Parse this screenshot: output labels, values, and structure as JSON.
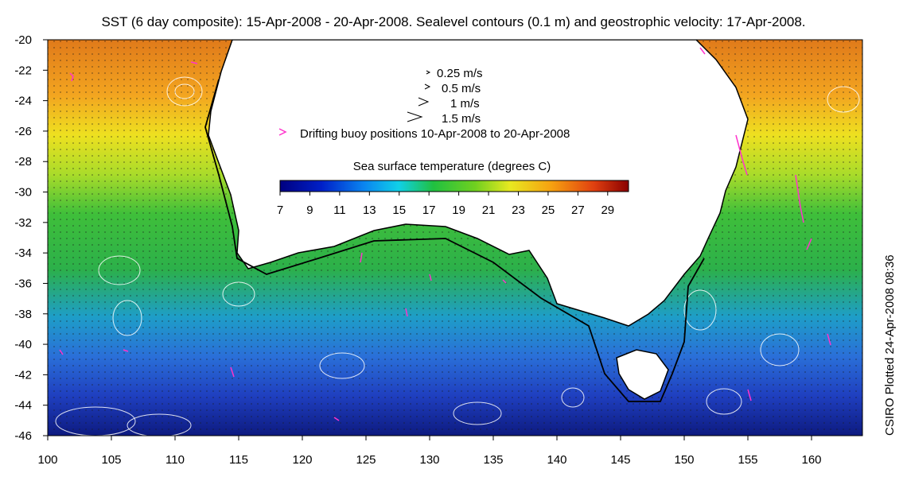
{
  "title": "SST (6 day composite): 15-Apr-2008 - 20-Apr-2008. Sealevel contours (0.1 m) and geostrophic velocity: 17-Apr-2008.",
  "credit": "CSIRO Plotted 24-Apr-2008 08:36",
  "axes": {
    "lon_ticks": [
      "100",
      "105",
      "110",
      "115",
      "120",
      "125",
      "130",
      "135",
      "140",
      "145",
      "150",
      "155",
      "160"
    ],
    "lat_ticks": [
      "-20",
      "-22",
      "-24",
      "-26",
      "-28",
      "-30",
      "-32",
      "-34",
      "-36",
      "-38",
      "-40",
      "-42",
      "-44",
      "-46"
    ]
  },
  "velocity_legend": [
    "0.25 m/s",
    "0.5 m/s",
    "1 m/s",
    "1.5 m/s"
  ],
  "buoy_legend": "Drifting buoy positions 10-Apr-2008 to 20-Apr-2008",
  "colorbar": {
    "title": "Sea surface temperature (degrees C)",
    "ticks": [
      "7",
      "9",
      "11",
      "13",
      "15",
      "17",
      "19",
      "21",
      "23",
      "25",
      "27",
      "29"
    ],
    "range": [
      7,
      30.4
    ]
  },
  "colors": {
    "buoy": "#ff33cc",
    "land": "#ffffff",
    "contour": "#ffffff"
  }
}
